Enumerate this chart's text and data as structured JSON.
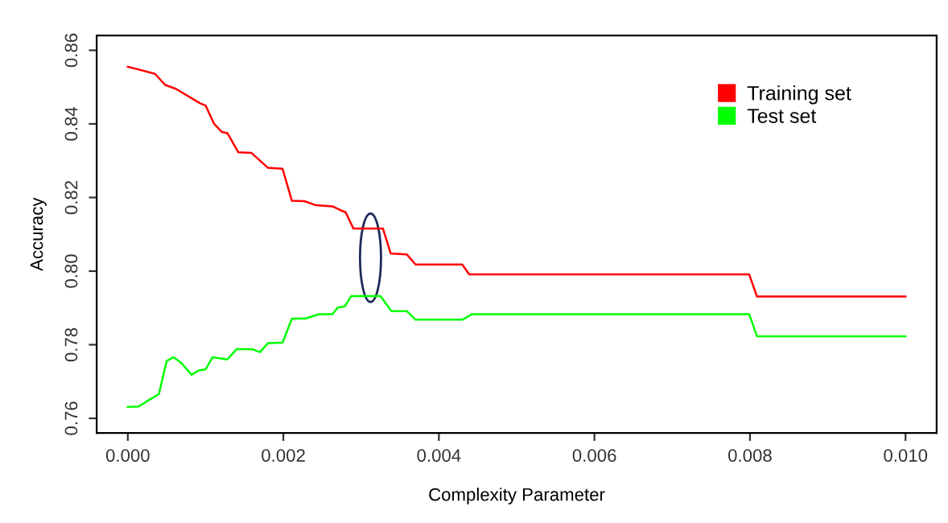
{
  "chart_data": {
    "type": "line",
    "xlabel": "Complexity Parameter",
    "ylabel": "Accuracy",
    "xlim": [
      -0.0004,
      0.0104
    ],
    "xticks": [
      {
        "value": 0,
        "label": "0.000"
      },
      {
        "value": 0.002,
        "label": "0.002"
      },
      {
        "value": 0.004,
        "label": "0.004"
      },
      {
        "value": 0.006,
        "label": "0.006"
      },
      {
        "value": 0.008,
        "label": "0.008"
      },
      {
        "value": 0.01,
        "label": "0.010"
      }
    ],
    "ylim": [
      0.756,
      0.864
    ],
    "yticks": [
      {
        "value": 0.76,
        "label": "0.76"
      },
      {
        "value": 0.78,
        "label": "0.78"
      },
      {
        "value": 0.8,
        "label": "0.80"
      },
      {
        "value": 0.82,
        "label": "0.82"
      },
      {
        "value": 0.84,
        "label": "0.84"
      },
      {
        "value": 0.86,
        "label": "0.86"
      }
    ],
    "grid": false,
    "legend": "top right",
    "marker": "none",
    "line_style": "solid",
    "series": [
      {
        "name": "Training set",
        "color": "#ff0000",
        "x": [
          0,
          0.0001,
          0.00035,
          0.00048,
          0.00062,
          0.00093,
          0.001,
          0.00111,
          0.00121,
          0.00128,
          0.00142,
          0.00159,
          0.0018,
          0.00199,
          0.00211,
          0.00227,
          0.00242,
          0.00263,
          0.00274,
          0.0028,
          0.0029,
          0.00328,
          0.00338,
          0.00359,
          0.0037,
          0.0043,
          0.00439,
          0.00799,
          0.00809,
          0.01
        ],
        "values": [
          0.8555,
          0.855,
          0.8536,
          0.8506,
          0.8495,
          0.8456,
          0.845,
          0.84,
          0.8378,
          0.8375,
          0.8323,
          0.8321,
          0.8281,
          0.8278,
          0.8191,
          0.819,
          0.8179,
          0.8176,
          0.8165,
          0.816,
          0.8116,
          0.8116,
          0.8048,
          0.8045,
          0.8018,
          0.8018,
          0.7991,
          0.7991,
          0.7931,
          0.7931
        ]
      },
      {
        "name": "Test set",
        "color": "#00ff00",
        "x": [
          0,
          0.00014,
          0.00028,
          0.0004,
          0.0005,
          0.00059,
          0.00069,
          0.00082,
          0.00091,
          0.001,
          0.00109,
          0.00128,
          0.0014,
          0.0016,
          0.0017,
          0.0018,
          0.00199,
          0.00211,
          0.00228,
          0.00246,
          0.00263,
          0.0027,
          0.00279,
          0.00287,
          0.00325,
          0.00339,
          0.00359,
          0.0037,
          0.0043,
          0.00443,
          0.00799,
          0.00809,
          0.01
        ],
        "values": [
          0.7631,
          0.7632,
          0.7651,
          0.7666,
          0.7756,
          0.7766,
          0.775,
          0.7718,
          0.773,
          0.7733,
          0.7766,
          0.776,
          0.7788,
          0.7788,
          0.778,
          0.7804,
          0.7806,
          0.7871,
          0.7871,
          0.7883,
          0.7883,
          0.7901,
          0.7904,
          0.7932,
          0.7932,
          0.7891,
          0.7891,
          0.7868,
          0.7868,
          0.7883,
          0.7883,
          0.7823,
          0.7823
        ]
      }
    ]
  }
}
